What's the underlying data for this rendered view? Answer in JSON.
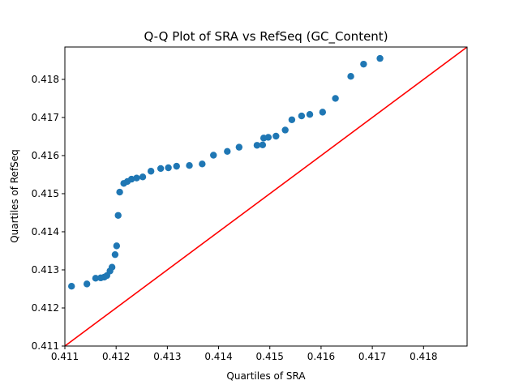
{
  "chart_data": {
    "type": "scatter",
    "title": "Q-Q Plot of SRA vs RefSeq (GC_Content)",
    "xlabel": "Quartiles of SRA",
    "ylabel": "Quartiles of RefSeq",
    "xlim": [
      0.411,
      0.41885
    ],
    "ylim": [
      0.411,
      0.41885
    ],
    "xticks": [
      "0.411",
      "0.412",
      "0.413",
      "0.414",
      "0.415",
      "0.416",
      "0.417",
      "0.418"
    ],
    "yticks": [
      "0.411",
      "0.412",
      "0.413",
      "0.414",
      "0.415",
      "0.416",
      "0.417",
      "0.418"
    ],
    "grid": false,
    "point_color": "#1f77b4",
    "reference_line": {
      "type": "y=x",
      "color": "#ff0000"
    },
    "points": [
      [
        0.41113,
        0.41257
      ],
      [
        0.41143,
        0.41263
      ],
      [
        0.4116,
        0.41278
      ],
      [
        0.4117,
        0.41279
      ],
      [
        0.41177,
        0.41281
      ],
      [
        0.41182,
        0.41285
      ],
      [
        0.41188,
        0.41297
      ],
      [
        0.41192,
        0.41307
      ],
      [
        0.41198,
        0.4134
      ],
      [
        0.41201,
        0.41363
      ],
      [
        0.41204,
        0.41443
      ],
      [
        0.41207,
        0.41504
      ],
      [
        0.41215,
        0.41527
      ],
      [
        0.41222,
        0.41532
      ],
      [
        0.4123,
        0.41538
      ],
      [
        0.4124,
        0.41541
      ],
      [
        0.41252,
        0.41544
      ],
      [
        0.41268,
        0.41559
      ],
      [
        0.41287,
        0.41566
      ],
      [
        0.41302,
        0.41568
      ],
      [
        0.41318,
        0.41572
      ],
      [
        0.41343,
        0.41574
      ],
      [
        0.41368,
        0.41578
      ],
      [
        0.4139,
        0.41601
      ],
      [
        0.41417,
        0.41611
      ],
      [
        0.4144,
        0.41622
      ],
      [
        0.41475,
        0.41627
      ],
      [
        0.41486,
        0.41628
      ],
      [
        0.41488,
        0.41646
      ],
      [
        0.41497,
        0.41648
      ],
      [
        0.41512,
        0.41651
      ],
      [
        0.4153,
        0.41667
      ],
      [
        0.41543,
        0.41694
      ],
      [
        0.41562,
        0.41704
      ],
      [
        0.41578,
        0.41708
      ],
      [
        0.41603,
        0.41714
      ],
      [
        0.41628,
        0.4175
      ],
      [
        0.41658,
        0.41808
      ],
      [
        0.41683,
        0.4184
      ],
      [
        0.41715,
        0.41855
      ]
    ]
  }
}
